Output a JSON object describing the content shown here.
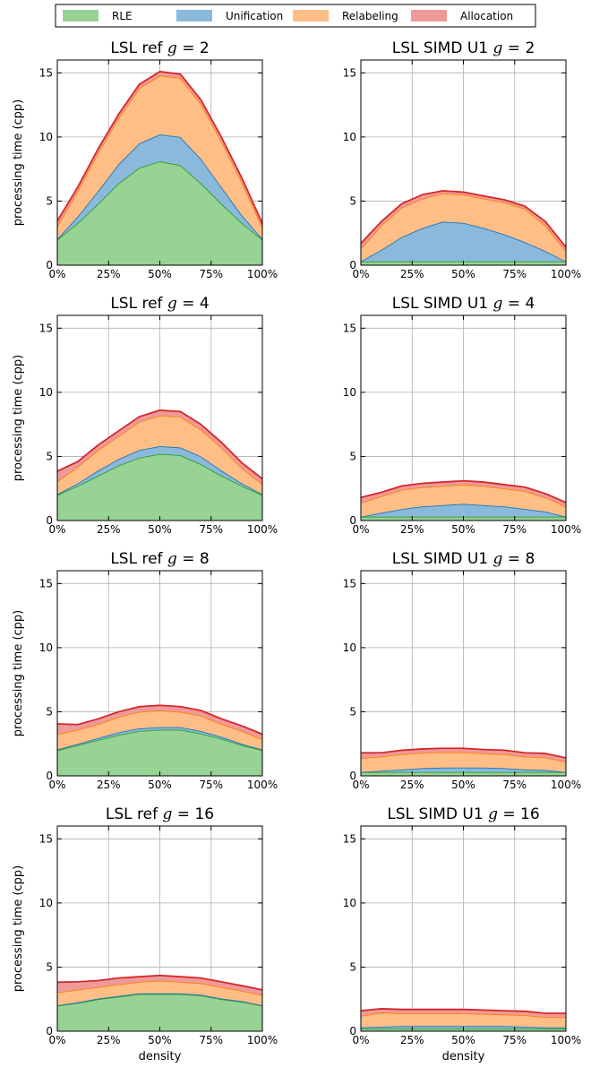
{
  "legend": [
    {
      "label": "RLE",
      "color": "#98d294",
      "edge": "#2ca02c"
    },
    {
      "label": "Unification",
      "color": "#8ab9dc",
      "edge": "#1f77b4"
    },
    {
      "label": "Relabeling",
      "color": "#ffbe86",
      "edge": "#ff7f0e"
    },
    {
      "label": "Allocation",
      "color": "#ee9a9a",
      "edge": "#d62728"
    }
  ],
  "ylabel": "processing time (cpp)",
  "xlabel": "density",
  "yticks": [
    "0",
    "5",
    "10",
    "15"
  ],
  "xticks": [
    "0%",
    "25%",
    "50%",
    "75%",
    "100%"
  ],
  "chart_data": [
    {
      "type": "area",
      "title": "LSL ref g = 2",
      "xlabel": "",
      "ylabel": "processing time (cpp)",
      "xlim": [
        0,
        100
      ],
      "ylim": [
        0,
        16
      ],
      "grid": true,
      "stacked": true,
      "x": [
        0,
        10,
        20,
        30,
        40,
        50,
        60,
        70,
        80,
        90,
        100
      ],
      "series": [
        {
          "name": "RLE",
          "values": [
            2.0,
            3.3,
            4.8,
            6.4,
            7.6,
            8.1,
            7.8,
            6.4,
            4.8,
            3.3,
            2.0
          ]
        },
        {
          "name": "Unification",
          "values": [
            0.05,
            0.5,
            1.0,
            1.5,
            1.9,
            2.1,
            2.2,
            1.9,
            1.3,
            0.6,
            0.05
          ]
        },
        {
          "name": "Relabeling",
          "values": [
            1.0,
            2.0,
            3.0,
            3.6,
            4.3,
            4.6,
            4.6,
            4.3,
            3.6,
            2.6,
            0.9
          ]
        },
        {
          "name": "Allocation",
          "values": [
            0.4,
            0.3,
            0.3,
            0.3,
            0.3,
            0.3,
            0.3,
            0.3,
            0.3,
            0.3,
            0.3
          ]
        }
      ]
    },
    {
      "type": "area",
      "title": "LSL SIMD U1 g = 2",
      "xlabel": "",
      "ylabel": "",
      "xlim": [
        0,
        100
      ],
      "ylim": [
        0,
        16
      ],
      "grid": true,
      "stacked": true,
      "x": [
        0,
        10,
        20,
        30,
        40,
        50,
        60,
        70,
        80,
        90,
        100
      ],
      "series": [
        {
          "name": "RLE",
          "values": [
            0.3,
            0.3,
            0.3,
            0.3,
            0.3,
            0.3,
            0.3,
            0.3,
            0.3,
            0.3,
            0.3
          ]
        },
        {
          "name": "Unification",
          "values": [
            0.0,
            0.9,
            1.9,
            2.6,
            3.1,
            3.0,
            2.6,
            2.1,
            1.5,
            0.8,
            0.0
          ]
        },
        {
          "name": "Relabeling",
          "values": [
            1.0,
            1.9,
            2.3,
            2.3,
            2.2,
            2.2,
            2.3,
            2.5,
            2.6,
            2.0,
            0.8
          ]
        },
        {
          "name": "Allocation",
          "values": [
            0.4,
            0.3,
            0.3,
            0.3,
            0.2,
            0.2,
            0.2,
            0.2,
            0.2,
            0.3,
            0.3
          ]
        }
      ]
    },
    {
      "type": "area",
      "title": "LSL ref g = 4",
      "xlabel": "",
      "ylabel": "processing time (cpp)",
      "xlim": [
        0,
        100
      ],
      "ylim": [
        0,
        16
      ],
      "grid": true,
      "stacked": true,
      "x": [
        0,
        10,
        20,
        30,
        40,
        50,
        60,
        70,
        80,
        90,
        100
      ],
      "series": [
        {
          "name": "RLE",
          "values": [
            2.0,
            2.7,
            3.5,
            4.3,
            4.9,
            5.2,
            5.1,
            4.4,
            3.5,
            2.7,
            2.0
          ]
        },
        {
          "name": "Unification",
          "values": [
            0.05,
            0.2,
            0.4,
            0.5,
            0.6,
            0.6,
            0.6,
            0.6,
            0.4,
            0.2,
            0.05
          ]
        },
        {
          "name": "Relabeling",
          "values": [
            1.0,
            1.3,
            1.6,
            1.8,
            2.2,
            2.4,
            2.4,
            2.1,
            1.8,
            1.2,
            0.8
          ]
        },
        {
          "name": "Allocation",
          "values": [
            0.8,
            0.4,
            0.4,
            0.4,
            0.4,
            0.4,
            0.4,
            0.4,
            0.4,
            0.4,
            0.4
          ]
        }
      ]
    },
    {
      "type": "area",
      "title": "LSL SIMD U1 g = 4",
      "xlabel": "",
      "ylabel": "",
      "xlim": [
        0,
        100
      ],
      "ylim": [
        0,
        16
      ],
      "grid": true,
      "stacked": true,
      "x": [
        0,
        10,
        20,
        30,
        40,
        50,
        60,
        70,
        80,
        90,
        100
      ],
      "series": [
        {
          "name": "RLE",
          "values": [
            0.3,
            0.3,
            0.3,
            0.3,
            0.3,
            0.3,
            0.3,
            0.3,
            0.3,
            0.3,
            0.3
          ]
        },
        {
          "name": "Unification",
          "values": [
            0.0,
            0.3,
            0.6,
            0.8,
            0.9,
            1.0,
            0.9,
            0.8,
            0.6,
            0.4,
            0.0
          ]
        },
        {
          "name": "Relabeling",
          "values": [
            1.1,
            1.3,
            1.5,
            1.5,
            1.5,
            1.5,
            1.5,
            1.4,
            1.4,
            1.1,
            0.8
          ]
        },
        {
          "name": "Allocation",
          "values": [
            0.4,
            0.3,
            0.3,
            0.3,
            0.3,
            0.3,
            0.3,
            0.3,
            0.3,
            0.3,
            0.3
          ]
        }
      ]
    },
    {
      "type": "area",
      "title": "LSL ref g = 8",
      "xlabel": "",
      "ylabel": "processing time (cpp)",
      "xlim": [
        0,
        100
      ],
      "ylim": [
        0,
        16
      ],
      "grid": true,
      "stacked": true,
      "x": [
        0,
        10,
        20,
        30,
        40,
        50,
        60,
        70,
        80,
        90,
        100
      ],
      "series": [
        {
          "name": "RLE",
          "values": [
            2.0,
            2.4,
            2.8,
            3.2,
            3.5,
            3.6,
            3.6,
            3.3,
            2.9,
            2.4,
            2.0
          ]
        },
        {
          "name": "Unification",
          "values": [
            0.05,
            0.1,
            0.15,
            0.2,
            0.2,
            0.2,
            0.2,
            0.2,
            0.15,
            0.1,
            0.05
          ]
        },
        {
          "name": "Relabeling",
          "values": [
            1.2,
            1.1,
            1.1,
            1.2,
            1.3,
            1.3,
            1.2,
            1.2,
            1.0,
            1.0,
            0.8
          ]
        },
        {
          "name": "Allocation",
          "values": [
            0.8,
            0.4,
            0.4,
            0.4,
            0.4,
            0.4,
            0.4,
            0.4,
            0.4,
            0.4,
            0.4
          ]
        }
      ]
    },
    {
      "type": "area",
      "title": "LSL SIMD U1 g = 8",
      "xlabel": "",
      "ylabel": "",
      "xlim": [
        0,
        100
      ],
      "ylim": [
        0,
        16
      ],
      "grid": true,
      "stacked": true,
      "x": [
        0,
        10,
        20,
        30,
        40,
        50,
        60,
        70,
        80,
        90,
        100
      ],
      "series": [
        {
          "name": "RLE",
          "values": [
            0.3,
            0.3,
            0.3,
            0.3,
            0.3,
            0.3,
            0.3,
            0.3,
            0.3,
            0.3,
            0.3
          ]
        },
        {
          "name": "Unification",
          "values": [
            0.0,
            0.1,
            0.2,
            0.3,
            0.35,
            0.35,
            0.35,
            0.3,
            0.2,
            0.15,
            0.0
          ]
        },
        {
          "name": "Relabeling",
          "values": [
            1.1,
            1.1,
            1.2,
            1.2,
            1.2,
            1.2,
            1.1,
            1.1,
            1.0,
            1.0,
            0.8
          ]
        },
        {
          "name": "Allocation",
          "values": [
            0.4,
            0.3,
            0.3,
            0.3,
            0.3,
            0.3,
            0.3,
            0.3,
            0.3,
            0.3,
            0.3
          ]
        }
      ]
    },
    {
      "type": "area",
      "title": "LSL ref g = 16",
      "xlabel": "density",
      "ylabel": "processing time (cpp)",
      "xlim": [
        0,
        100
      ],
      "ylim": [
        0,
        16
      ],
      "grid": true,
      "stacked": true,
      "x": [
        0,
        10,
        20,
        30,
        40,
        50,
        60,
        70,
        80,
        90,
        100
      ],
      "series": [
        {
          "name": "RLE",
          "values": [
            2.0,
            2.2,
            2.5,
            2.7,
            2.9,
            2.9,
            2.9,
            2.8,
            2.5,
            2.3,
            2.0
          ]
        },
        {
          "name": "Unification",
          "values": [
            0.02,
            0.05,
            0.05,
            0.05,
            0.05,
            0.05,
            0.05,
            0.05,
            0.05,
            0.05,
            0.02
          ]
        },
        {
          "name": "Relabeling",
          "values": [
            1.0,
            1.0,
            0.9,
            0.9,
            0.9,
            1.0,
            0.9,
            0.9,
            0.9,
            0.8,
            0.8
          ]
        },
        {
          "name": "Allocation",
          "values": [
            0.8,
            0.6,
            0.5,
            0.5,
            0.4,
            0.4,
            0.4,
            0.4,
            0.4,
            0.4,
            0.4
          ]
        }
      ]
    },
    {
      "type": "area",
      "title": "LSL SIMD U1 g = 16",
      "xlabel": "density",
      "ylabel": "",
      "xlim": [
        0,
        100
      ],
      "ylim": [
        0,
        16
      ],
      "grid": true,
      "stacked": true,
      "x": [
        0,
        10,
        20,
        30,
        40,
        50,
        60,
        70,
        80,
        90,
        100
      ],
      "series": [
        {
          "name": "RLE",
          "values": [
            0.2,
            0.2,
            0.2,
            0.2,
            0.2,
            0.2,
            0.2,
            0.2,
            0.2,
            0.2,
            0.2
          ]
        },
        {
          "name": "Unification",
          "values": [
            0.1,
            0.15,
            0.2,
            0.2,
            0.2,
            0.2,
            0.2,
            0.2,
            0.15,
            0.1,
            0.1
          ]
        },
        {
          "name": "Relabeling",
          "values": [
            0.9,
            1.1,
            1.0,
            1.0,
            1.0,
            1.0,
            0.95,
            0.9,
            0.9,
            0.8,
            0.8
          ]
        },
        {
          "name": "Allocation",
          "values": [
            0.4,
            0.3,
            0.3,
            0.3,
            0.3,
            0.3,
            0.3,
            0.3,
            0.3,
            0.3,
            0.3
          ]
        }
      ]
    }
  ]
}
